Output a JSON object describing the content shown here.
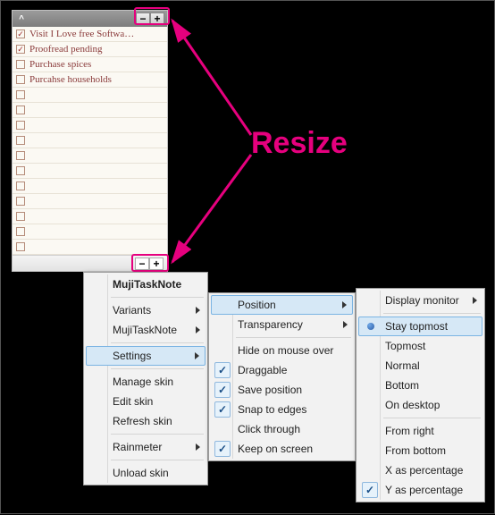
{
  "colors": {
    "annotation": "#e6007e",
    "menu_bg": "#f2f2f2",
    "menu_hover_bg": "#d6e8f6",
    "menu_hover_border": "#7bb4e3",
    "note_bg": "#fbf9f3",
    "task_text": "#8a3a3a"
  },
  "annotation": {
    "label": "Resize"
  },
  "note": {
    "header": {
      "collapse_glyph": "^",
      "minus": "−",
      "plus": "+"
    },
    "footer": {
      "minus": "−",
      "plus": "+"
    },
    "tasks": [
      {
        "checked": true,
        "text": "Visit I Love free Softwa…"
      },
      {
        "checked": true,
        "text": "Proofread pending"
      },
      {
        "checked": false,
        "text": "Purchase spices"
      },
      {
        "checked": false,
        "text": "Purcahse households"
      },
      {
        "checked": false,
        "text": ""
      },
      {
        "checked": false,
        "text": ""
      },
      {
        "checked": false,
        "text": ""
      },
      {
        "checked": false,
        "text": ""
      },
      {
        "checked": false,
        "text": ""
      },
      {
        "checked": false,
        "text": ""
      },
      {
        "checked": false,
        "text": ""
      },
      {
        "checked": false,
        "text": ""
      },
      {
        "checked": false,
        "text": ""
      },
      {
        "checked": false,
        "text": ""
      },
      {
        "checked": false,
        "text": ""
      }
    ]
  },
  "menu1": {
    "title": "MujiTaskNote",
    "items": {
      "variants": "Variants",
      "muji": "MujiTaskNote",
      "settings": "Settings",
      "manage": "Manage skin",
      "edit": "Edit skin",
      "refresh": "Refresh skin",
      "rainmeter": "Rainmeter",
      "unload": "Unload skin"
    }
  },
  "menu2": {
    "items": {
      "position": "Position",
      "transparency": "Transparency",
      "hide": "Hide on mouse over",
      "draggable": "Draggable",
      "savepos": "Save position",
      "snap": "Snap to edges",
      "clickthru": "Click through",
      "keep": "Keep on screen"
    }
  },
  "menu3": {
    "items": {
      "display": "Display monitor",
      "stay": "Stay topmost",
      "topmost": "Topmost",
      "normal": "Normal",
      "bottom": "Bottom",
      "ondesk": "On desktop",
      "fromr": "From right",
      "fromb": "From bottom",
      "xperc": "X as percentage",
      "yperc": "Y as percentage"
    }
  }
}
